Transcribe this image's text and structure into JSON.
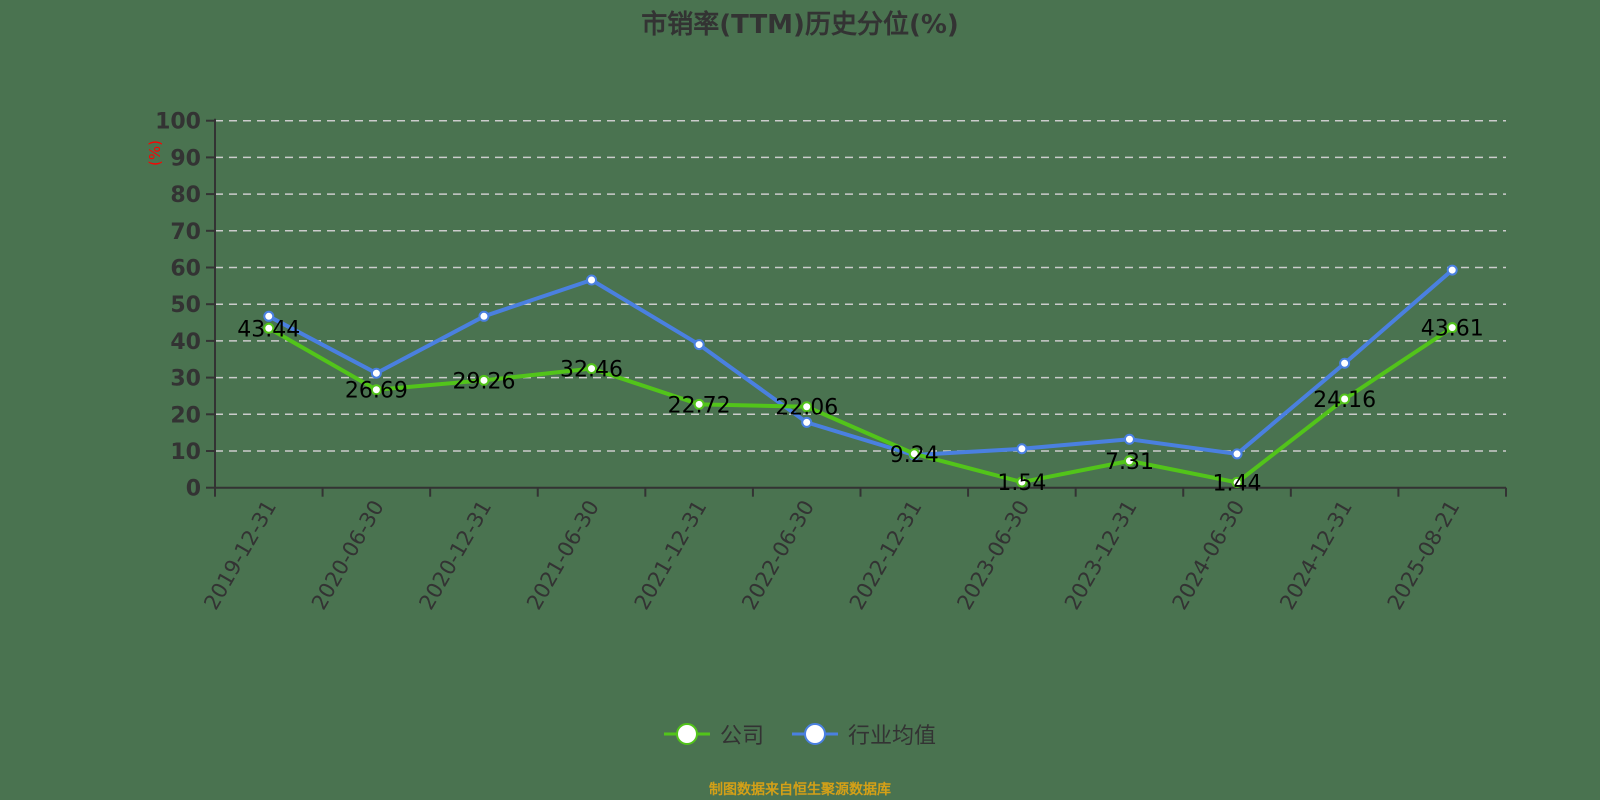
{
  "title": "市销率(TTM)历史分位(%)",
  "footer_note": "制图数据来自恒生聚源数据库",
  "colors": {
    "background": "#4a7350",
    "company": "#52c41a",
    "industry": "#4a80e0",
    "grid": "#cccccc",
    "axis": "#333333",
    "unit_label": "#ff0000",
    "footer": "#d4a017"
  },
  "legend": [
    {
      "name": "公司",
      "color": "#52c41a"
    },
    {
      "name": "行业均值",
      "color": "#4a80e0"
    }
  ],
  "chart_data": {
    "type": "line",
    "title": "市销率(TTM)历史分位(%)",
    "xlabel": "",
    "ylabel": "(%)",
    "ylim": [
      0,
      100
    ],
    "yticks": [
      0,
      10,
      20,
      30,
      40,
      50,
      60,
      70,
      80,
      90,
      100
    ],
    "grid": true,
    "grid_style": "dashed",
    "legend_position": "bottom",
    "categories": [
      "2019-12-31",
      "2020-06-30",
      "2020-12-31",
      "2021-06-30",
      "2021-12-31",
      "2022-06-30",
      "2022-12-31",
      "2023-06-30",
      "2023-12-31",
      "2024-06-30",
      "2024-12-31",
      "2025-08-21"
    ],
    "series": [
      {
        "name": "公司",
        "values": [
          43.44,
          26.69,
          29.26,
          32.46,
          22.72,
          22.06,
          9.24,
          1.54,
          7.31,
          1.44,
          24.16,
          43.61
        ],
        "show_labels": true
      },
      {
        "name": "行业均值",
        "values": [
          46.7,
          31.2,
          46.7,
          56.6,
          39.0,
          17.8,
          8.9,
          10.6,
          13.2,
          9.2,
          33.9,
          59.3
        ],
        "show_labels": false
      }
    ]
  }
}
